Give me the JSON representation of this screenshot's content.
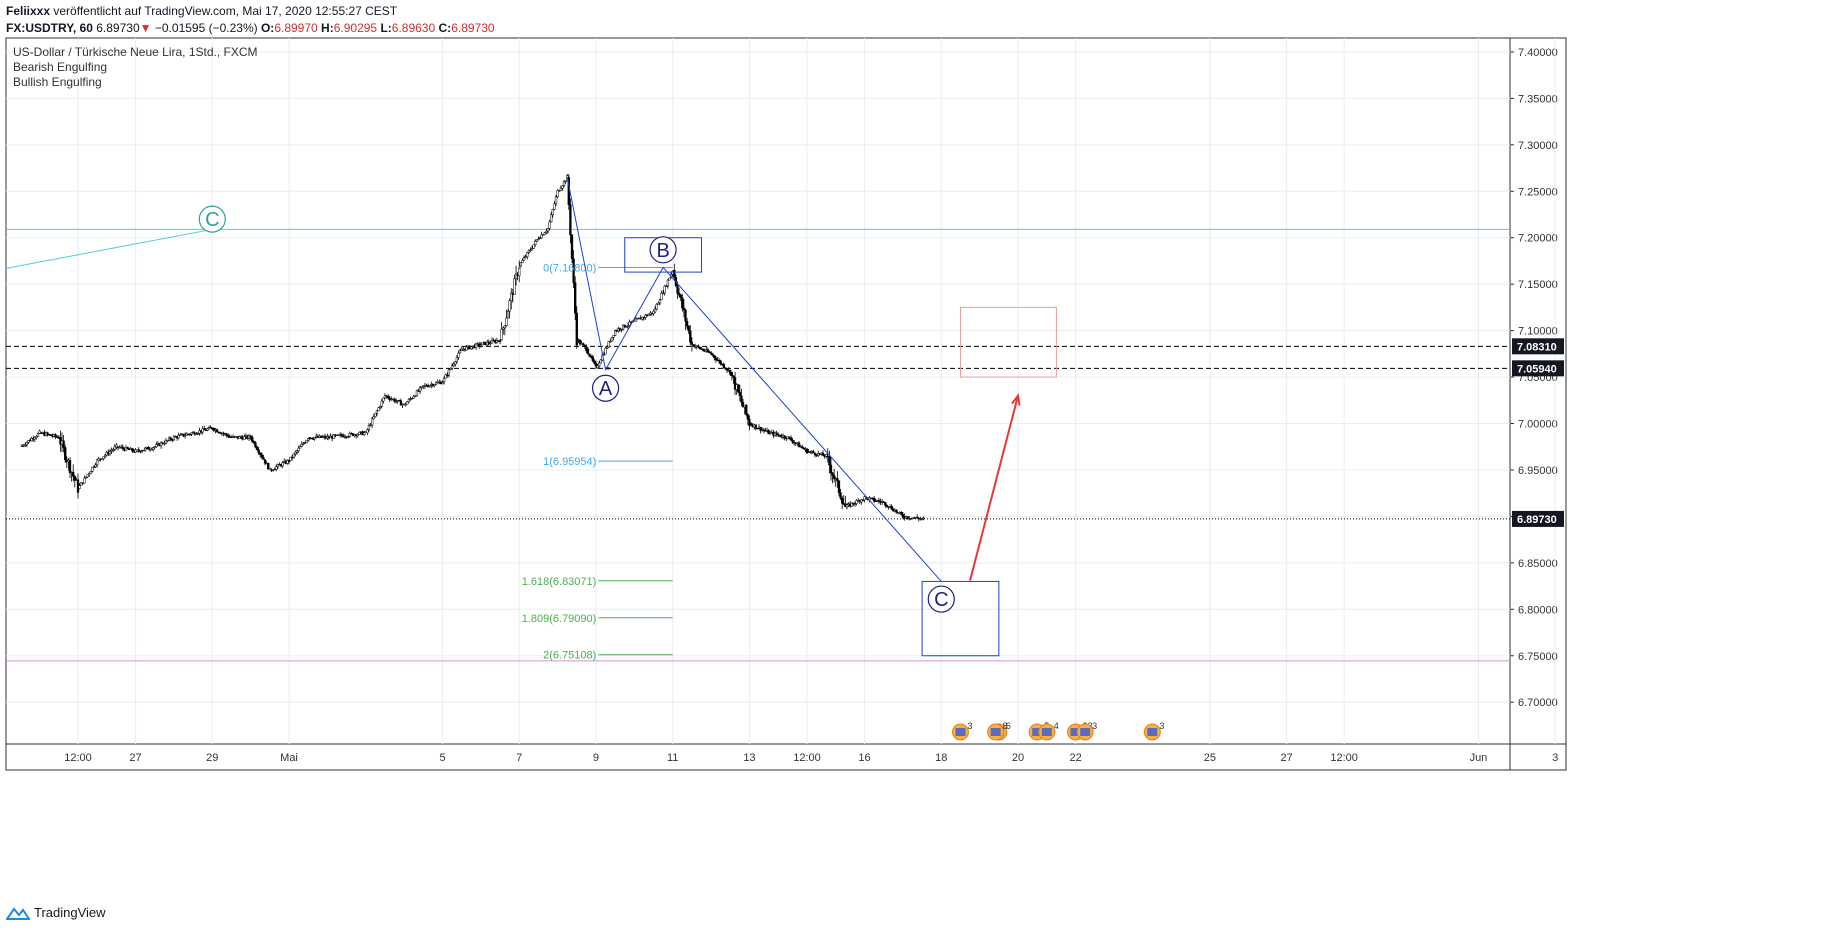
{
  "header": {
    "author": "Feliixxx",
    "published_text": "veröffentlicht auf TradingView.com, Mai 17, 2020 12:55:27 CEST",
    "symbol": "FX:USDTRY, 60",
    "last": "6.89730",
    "change_arrow": "▼",
    "change": "−0.01595 (−0.23%)",
    "o_label": "O:",
    "o_value": "6.89970",
    "h_label": "H:",
    "h_value": "6.90295",
    "l_label": "L:",
    "l_value": "6.89630",
    "c_label": "C:",
    "c_value": "6.89730"
  },
  "footer": {
    "brand": "TradingView"
  },
  "chart_data": {
    "type": "candlestick",
    "legend": [
      "US-Dollar / Türkische Neue Lira, 1Std., FXCM",
      "Bearish Engulfing",
      "Bullish Engulfing"
    ],
    "ylim": [
      6.655,
      7.415
    ],
    "y_ticks": [
      "7.40000",
      "7.35000",
      "7.30000",
      "7.25000",
      "7.20000",
      "7.15000",
      "7.10000",
      "7.05000",
      "7.00000",
      "6.95000",
      "6.90000",
      "6.85000",
      "6.80000",
      "6.75000",
      "6.70000"
    ],
    "x_ticks": [
      "12:00",
      "27",
      "29",
      "Mai",
      "5",
      "7",
      "9",
      "11",
      "13",
      "12:00",
      "16",
      "18",
      "20",
      "22",
      "25",
      "27",
      "12:00",
      "Jun",
      "3"
    ],
    "x_tick_dates": [
      "2020-04-25 12:00",
      "2020-04-27",
      "2020-04-29",
      "2020-05-01",
      "2020-05-05",
      "2020-05-07",
      "2020-05-09",
      "2020-05-11",
      "2020-05-13",
      "2020-05-14 12:00",
      "2020-05-16",
      "2020-05-18",
      "2020-05-20",
      "2020-05-21 12:00",
      "2020-05-25",
      "2020-05-27",
      "2020-05-28 12:00",
      "2020-06-01",
      "2020-06-03"
    ],
    "price_path": [
      [
        "2020-04-24 00:00",
        6.975
      ],
      [
        "2020-04-24 12:00",
        6.99
      ],
      [
        "2020-04-25 00:00",
        6.985
      ],
      [
        "2020-04-25 12:00",
        6.93
      ],
      [
        "2020-04-26 00:00",
        6.96
      ],
      [
        "2020-04-26 12:00",
        6.975
      ],
      [
        "2020-04-27 00:00",
        6.97
      ],
      [
        "2020-04-27 12:00",
        6.975
      ],
      [
        "2020-04-28 00:00",
        6.985
      ],
      [
        "2020-04-28 12:00",
        6.99
      ],
      [
        "2020-04-29 00:00",
        6.995
      ],
      [
        "2020-04-29 12:00",
        6.985
      ],
      [
        "2020-04-30 00:00",
        6.985
      ],
      [
        "2020-04-30 12:00",
        6.95
      ],
      [
        "2020-05-01 00:00",
        6.96
      ],
      [
        "2020-05-01 12:00",
        6.985
      ],
      [
        "2020-05-02 00:00",
        6.985
      ],
      [
        "2020-05-03 00:00",
        6.99
      ],
      [
        "2020-05-03 12:00",
        7.03
      ],
      [
        "2020-05-04 00:00",
        7.02
      ],
      [
        "2020-05-04 12:00",
        7.04
      ],
      [
        "2020-05-05 00:00",
        7.045
      ],
      [
        "2020-05-05 12:00",
        7.08
      ],
      [
        "2020-05-06 00:00",
        7.085
      ],
      [
        "2020-05-06 12:00",
        7.09
      ],
      [
        "2020-05-07 00:00",
        7.17
      ],
      [
        "2020-05-07 12:00",
        7.2
      ],
      [
        "2020-05-07 18:00",
        7.21
      ],
      [
        "2020-05-08 00:00",
        7.25
      ],
      [
        "2020-05-08 06:00",
        7.265
      ],
      [
        "2020-05-08 12:00",
        7.09
      ],
      [
        "2020-05-08 18:00",
        7.08
      ],
      [
        "2020-05-09 00:00",
        7.06
      ],
      [
        "2020-05-09 12:00",
        7.1
      ],
      [
        "2020-05-10 00:00",
        7.11
      ],
      [
        "2020-05-10 12:00",
        7.12
      ],
      [
        "2020-05-11 00:00",
        7.165
      ],
      [
        "2020-05-11 12:00",
        7.085
      ],
      [
        "2020-05-12 00:00",
        7.075
      ],
      [
        "2020-05-12 12:00",
        7.055
      ],
      [
        "2020-05-13 00:00",
        7.0
      ],
      [
        "2020-05-13 12:00",
        6.99
      ],
      [
        "2020-05-14 00:00",
        6.985
      ],
      [
        "2020-05-14 12:00",
        6.97
      ],
      [
        "2020-05-15 00:00",
        6.965
      ],
      [
        "2020-05-15 12:00",
        6.91
      ],
      [
        "2020-05-16 00:00",
        6.92
      ],
      [
        "2020-05-16 12:00",
        6.915
      ],
      [
        "2020-05-17 00:00",
        6.9
      ],
      [
        "2020-05-17 12:55",
        6.8973
      ]
    ],
    "price_labels": [
      {
        "value": 7.0831,
        "text": "7.08310"
      },
      {
        "value": 7.0594,
        "text": "7.05940"
      },
      {
        "value": 6.8973,
        "text": "6.89730"
      }
    ],
    "horizontal_lines": [
      {
        "value": 7.209,
        "color": "#4dd0e1",
        "style": "solid"
      },
      {
        "value": 7.0831,
        "color": "#000000",
        "style": "dashed"
      },
      {
        "value": 7.0594,
        "color": "#000000",
        "style": "dashed"
      },
      {
        "value": 6.8973,
        "color": "#000000",
        "style": "dotted"
      },
      {
        "value": 6.7445,
        "color": "#ce93d8",
        "style": "solid"
      }
    ],
    "fib_levels": [
      {
        "text": "0(7.16800)",
        "value": 7.168,
        "color": "#42a5f5"
      },
      {
        "text": "1(6.95954)",
        "value": 6.95954,
        "color": "#42a5f5"
      },
      {
        "text": "1.618(6.83071)",
        "value": 6.83071,
        "color": "#4caf50"
      },
      {
        "text": "1.809(6.79090)",
        "value": 6.7909,
        "color": "#4caf50"
      },
      {
        "text": "2(6.75108)",
        "value": 6.75108,
        "color": "#4caf50"
      }
    ],
    "wave_labels": [
      {
        "text": "C",
        "date": "2020-04-29 00:00",
        "value": 7.22,
        "color": "#26a69a"
      },
      {
        "text": "A",
        "date": "2020-05-09 06:00",
        "value": 7.038,
        "color": "#1a237e"
      },
      {
        "text": "B",
        "date": "2020-05-10 18:00",
        "value": 7.187,
        "color": "#1a237e"
      },
      {
        "text": "C",
        "date": "2020-05-18 00:00",
        "value": 6.811,
        "color": "#1a237e"
      }
    ],
    "event_badges": [
      "3",
      "6",
      "8",
      "5",
      "4",
      "33",
      "3",
      "3"
    ],
    "colors": {
      "wave_lines": "#1e3fd6",
      "projection_arrow": "#e53935",
      "target_box": "#ef9a9a",
      "candles": "#000000"
    }
  }
}
